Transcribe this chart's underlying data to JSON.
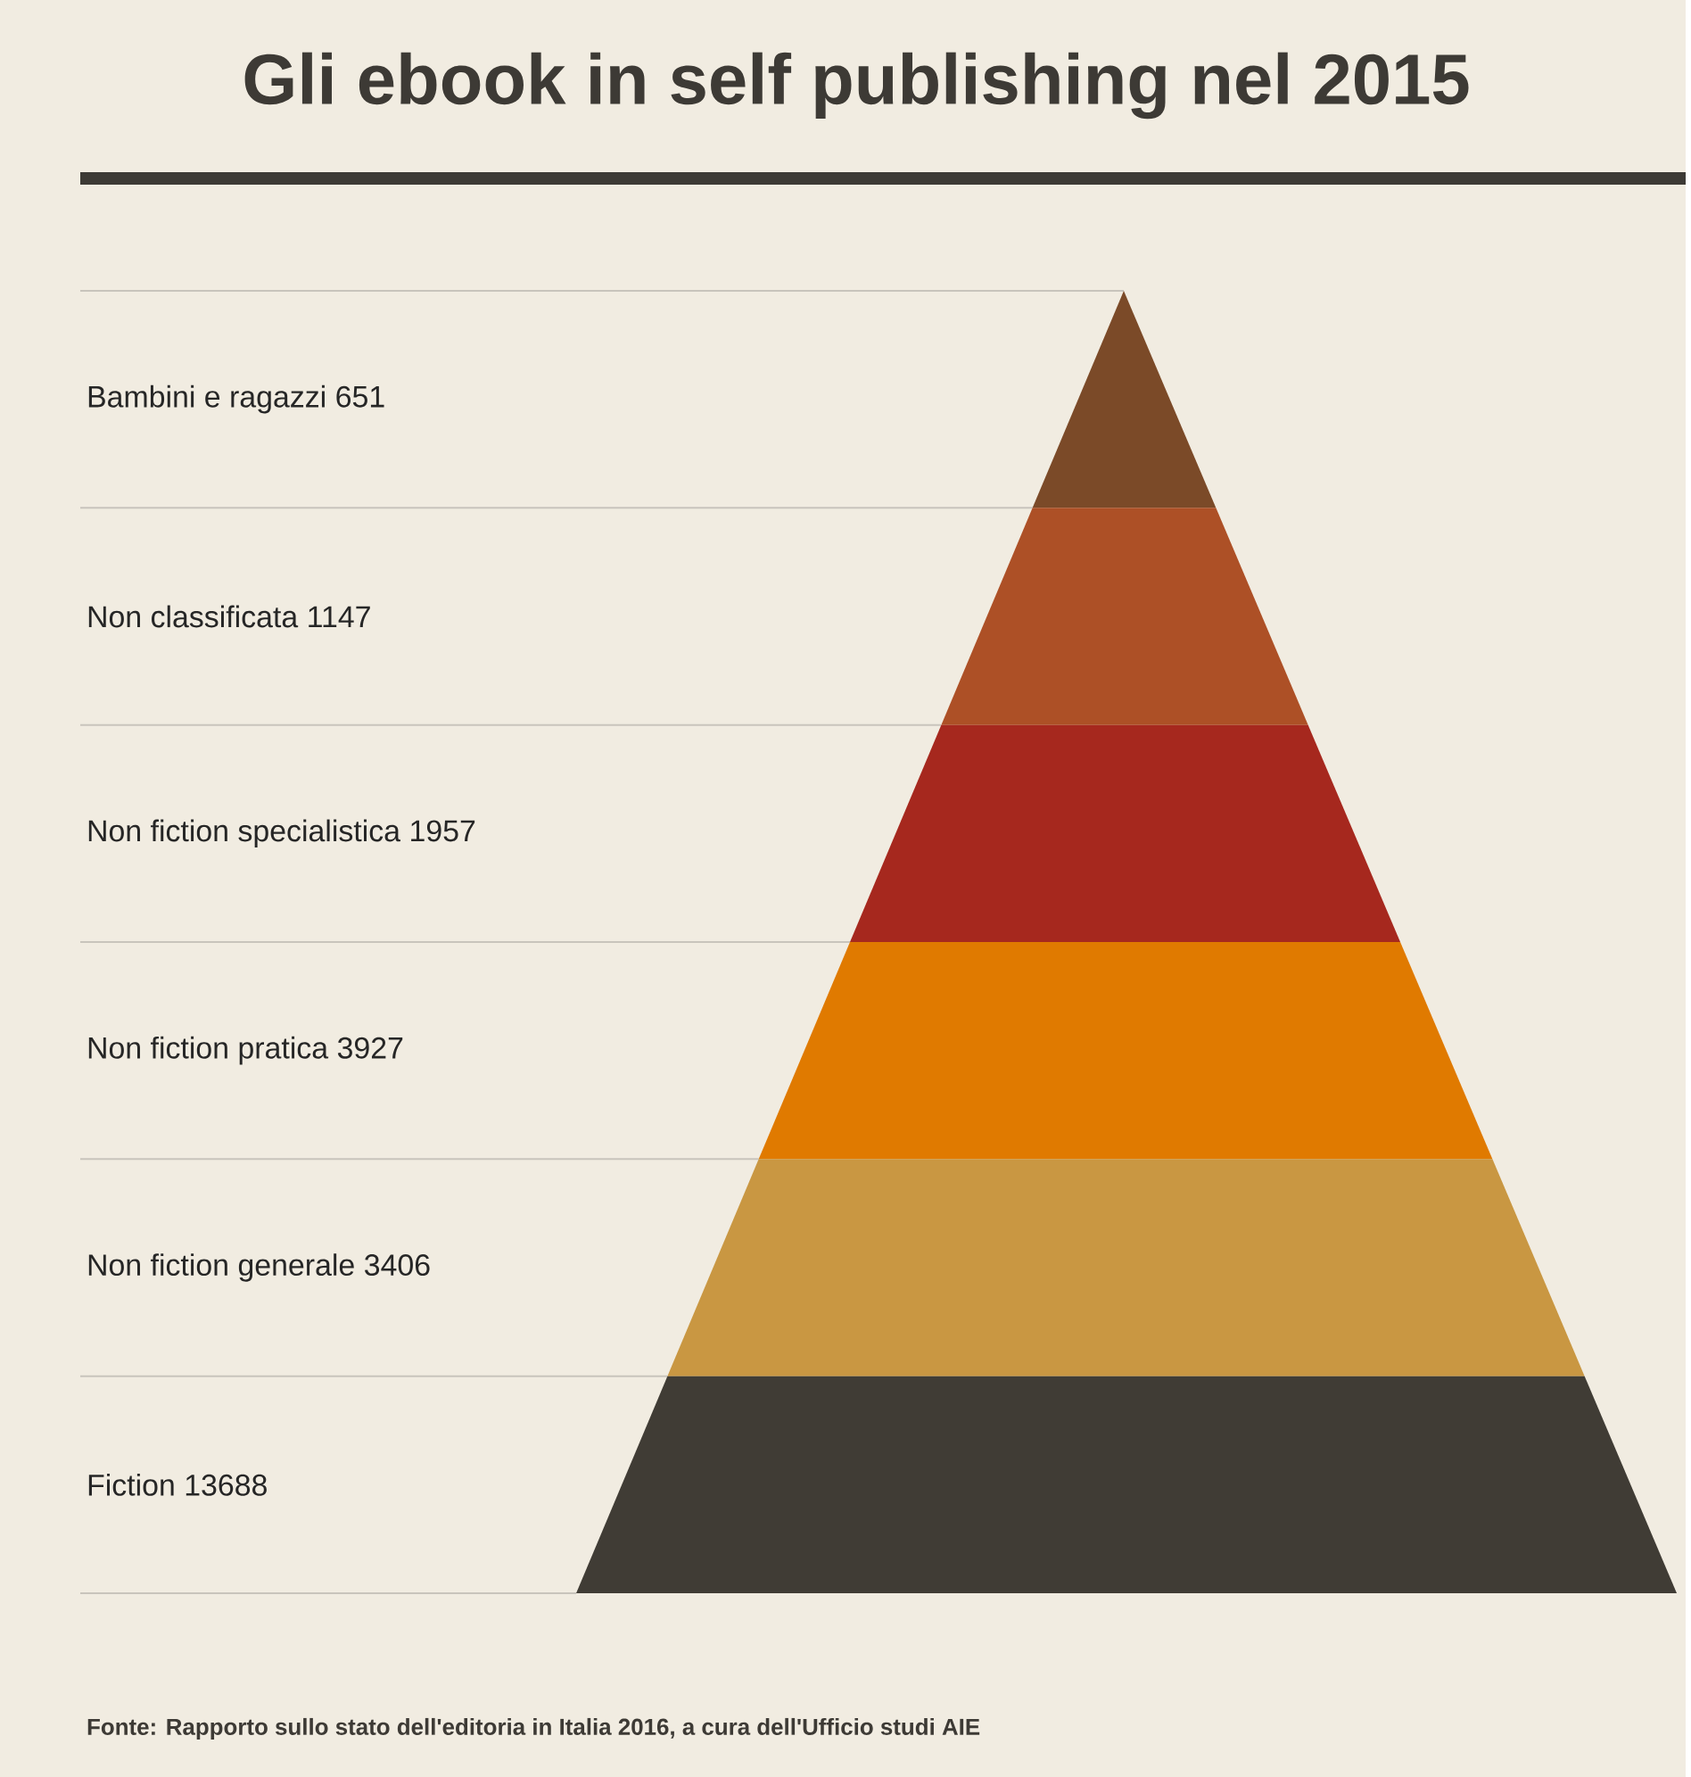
{
  "chart_data": {
    "type": "other",
    "title": "Gli ebook in self publishing nel 2015",
    "categories": [
      "Bambini e ragazzi",
      "Non classificata",
      "Non fiction specialistica",
      "Non fiction pratica",
      "Non fiction generale",
      "Fiction"
    ],
    "values": [
      651,
      1147,
      1957,
      3927,
      3406,
      13688
    ],
    "data_labels": true,
    "colors": [
      "#7b4a28",
      "#ad5026",
      "#a6281e",
      "#e07a00",
      "#c99742",
      "#403c35"
    ],
    "annotations": [
      "Fonte: Rapporto sullo stato dell'editoria in Italia 2016, a cura dell'Ufficio studi AIE"
    ]
  }
}
